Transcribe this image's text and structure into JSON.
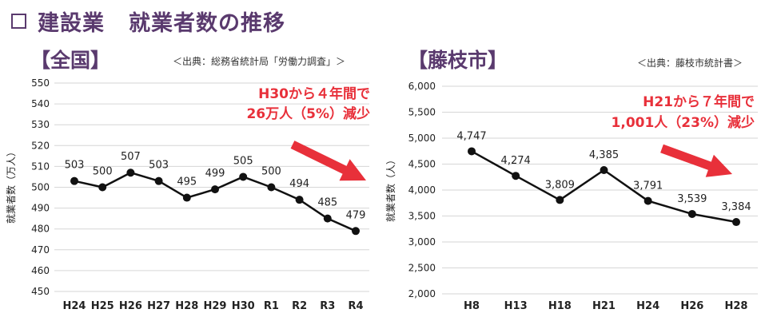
{
  "title": {
    "marker": "❑",
    "industry": "建設業",
    "main": "就業者数の推移"
  },
  "chart_data": [
    {
      "type": "line",
      "title": "【全国】",
      "source": "＜出典：総務省統計局「労働力調査」＞",
      "ylabel": "就業者数（万人）",
      "categories": [
        "H24",
        "H25",
        "H26",
        "H27",
        "H28",
        "H29",
        "H30",
        "R1",
        "R2",
        "R3",
        "R4"
      ],
      "series": [
        {
          "values": [
            503,
            500,
            507,
            503,
            495,
            499,
            505,
            500,
            494,
            485,
            479
          ]
        }
      ],
      "ylim": [
        450,
        550
      ],
      "yticks": [
        450,
        460,
        470,
        480,
        490,
        500,
        510,
        520,
        530,
        540,
        550
      ],
      "ytick_labels": [
        "450",
        "460",
        "470",
        "480",
        "490",
        "500",
        "510",
        "520",
        "530",
        "540",
        "550"
      ],
      "data_labels": [
        "503",
        "500",
        "507",
        "503",
        "495",
        "499",
        "505",
        "500",
        "494",
        "485",
        "479"
      ],
      "grid": true,
      "annotation": {
        "lines": [
          "H30から４年間で",
          "26万人（5%）減少"
        ],
        "color": "#e8303a"
      }
    },
    {
      "type": "line",
      "title": "【藤枝市】",
      "source": "＜出典：藤枝市統計書＞",
      "ylabel": "就業者数（人）",
      "categories": [
        "H8",
        "H13",
        "H18",
        "H21",
        "H24",
        "H26",
        "H28"
      ],
      "series": [
        {
          "values": [
            4747,
            4274,
            3809,
            4385,
            3791,
            3539,
            3384
          ]
        }
      ],
      "ylim": [
        2000,
        6000
      ],
      "yticks": [
        2000,
        2500,
        3000,
        3500,
        4000,
        4500,
        5000,
        5500,
        6000
      ],
      "ytick_labels": [
        "2,000",
        "2,500",
        "3,000",
        "3,500",
        "4,000",
        "4,500",
        "5,000",
        "5,500",
        "6,000"
      ],
      "data_labels": [
        "4,747",
        "4,274",
        "3,809",
        "4,385",
        "3,791",
        "3,539",
        "3,384"
      ],
      "grid": true,
      "annotation": {
        "lines": [
          "H21から７年間で",
          "1,001人（23%）減少"
        ],
        "color": "#e8303a"
      }
    }
  ]
}
